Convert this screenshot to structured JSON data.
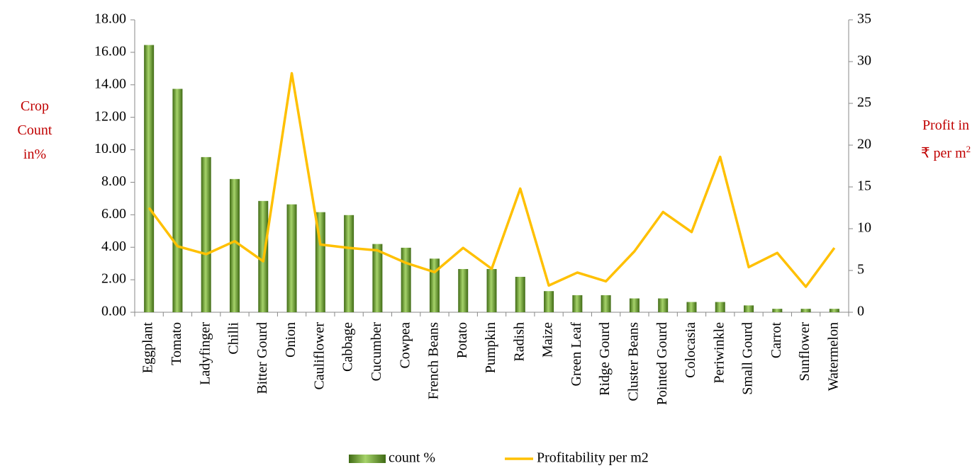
{
  "chart_data": {
    "type": "bar_line",
    "y_label": "Crop Count in%",
    "y2_label": {
      "text": "Profit in ₹ per m",
      "superscript": "2"
    },
    "categories": [
      "Eggplant",
      "Tomato",
      "Ladyfinger",
      "Chilli",
      "Bitter Gourd",
      "Onion",
      "Cauliflower",
      "Cabbage",
      "Cucumber",
      "Cowpea",
      "French Beans",
      "Potato",
      "Pumpkin",
      "Radish",
      "Maize",
      "Green Leaf",
      "Ridge Gourd",
      "Cluster Beans",
      "Pointed Gourd",
      "Colocasia",
      "Periwinkle",
      "Small Gourd",
      "Carrot",
      "Sunflower",
      "Watermelon"
    ],
    "series": [
      {
        "name": "count %",
        "type": "bar",
        "color": "#76a33a",
        "values": [
          16.45,
          13.75,
          9.55,
          8.2,
          6.85,
          6.64,
          6.16,
          5.98,
          4.2,
          3.97,
          3.3,
          2.66,
          2.66,
          2.18,
          1.3,
          1.05,
          1.05,
          0.85,
          0.85,
          0.63,
          0.63,
          0.42,
          0.21,
          0.21,
          0.21
        ]
      },
      {
        "name": "Profitability per m2",
        "type": "line",
        "axis": "y2",
        "color": "#ffc000",
        "values": [
          12.5,
          7.9,
          6.95,
          8.5,
          6.1,
          28.6,
          8.1,
          7.7,
          7.4,
          5.9,
          4.8,
          7.7,
          5.2,
          14.8,
          3.2,
          4.75,
          3.7,
          7.3,
          12.0,
          9.6,
          18.6,
          5.4,
          7.1,
          3.05,
          7.7
        ]
      }
    ],
    "ylim": [
      0,
      18
    ],
    "yticks": [
      {
        "value": 0,
        "label": "0.00"
      },
      {
        "value": 2,
        "label": "2.00"
      },
      {
        "value": 4,
        "label": "4.00"
      },
      {
        "value": 6,
        "label": "6.00"
      },
      {
        "value": 8,
        "label": "8.00"
      },
      {
        "value": 10,
        "label": "10.00"
      },
      {
        "value": 12,
        "label": "12.00"
      },
      {
        "value": 14,
        "label": "14.00"
      },
      {
        "value": 16,
        "label": "16.00"
      },
      {
        "value": 18,
        "label": "18.00"
      }
    ],
    "y2lim": [
      0,
      35
    ],
    "y2ticks": [
      0,
      5,
      10,
      15,
      20,
      25,
      30,
      35
    ],
    "grid": false,
    "legend": "bottom"
  }
}
